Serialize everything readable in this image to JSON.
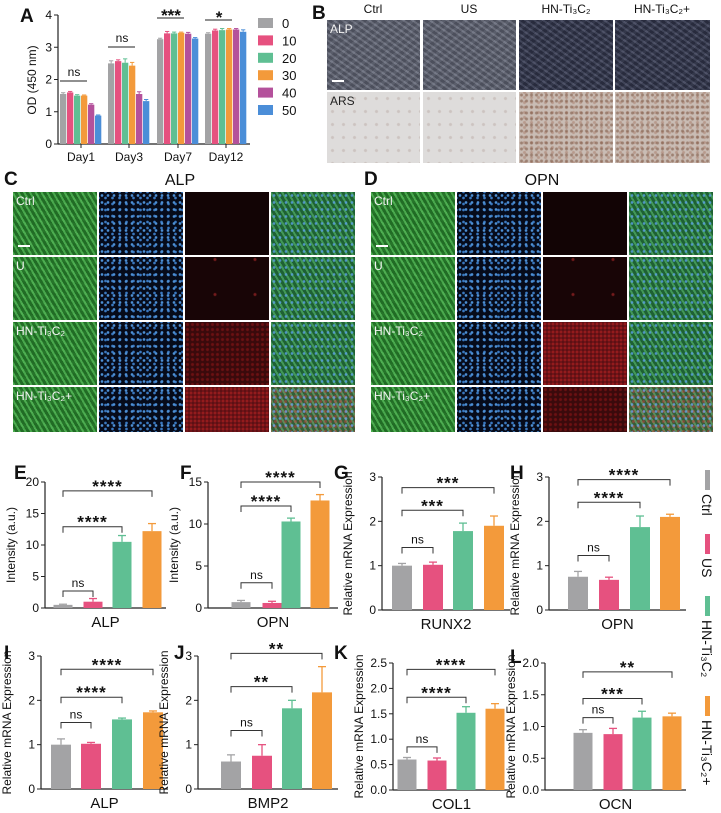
{
  "groups": [
    "Ctrl",
    "US",
    "HN-Ti₃C₂",
    "HN-Ti₃C₂+"
  ],
  "colors": {
    "ctrl": "#a3a3a5",
    "us": "#e6517f",
    "hn": "#5fbf93",
    "hn_plus": "#f39a3b",
    "a_series": [
      "#a3a3a5",
      "#e6517f",
      "#5fbf93",
      "#f39a3b",
      "#b4519b",
      "#4b8ed8"
    ]
  },
  "panel_b": {
    "label": "B",
    "columns": [
      "Ctrl",
      "US",
      "HN-Ti₃C₂",
      "HN-Ti₃C₂+"
    ],
    "rows": [
      "ALP",
      "ARS"
    ]
  },
  "panel_c": {
    "label": "C",
    "title": "ALP",
    "rows": [
      "Ctrl",
      "U",
      "HN-Ti₃C₂",
      "HN-Ti₃C₂+"
    ]
  },
  "panel_d": {
    "label": "D",
    "title": "OPN",
    "rows": [
      "Ctrl",
      "U",
      "HN-Ti₃C₂",
      "HN-Ti₃C₂+"
    ]
  },
  "legend": {
    "items": [
      "Ctrl",
      "US",
      "HN-Ti₃C₂",
      "HN-Ti₃C₂+"
    ]
  },
  "chart_data": [
    {
      "panel": "A",
      "type": "bar",
      "categories": [
        "Day1",
        "Day3",
        "Day7",
        "Day12"
      ],
      "series": [
        {
          "name": "0",
          "values": [
            1.55,
            2.5,
            3.25,
            3.42
          ],
          "errors": [
            0.04,
            0.08,
            0.03,
            0.03
          ]
        },
        {
          "name": "10",
          "values": [
            1.6,
            2.57,
            3.43,
            3.52
          ],
          "errors": [
            0.03,
            0.04,
            0.06,
            0.04
          ]
        },
        {
          "name": "20",
          "values": [
            1.5,
            2.52,
            3.43,
            3.53
          ],
          "errors": [
            0.03,
            0.12,
            0.04,
            0.05
          ]
        },
        {
          "name": "30",
          "values": [
            1.5,
            2.43,
            3.45,
            3.55
          ],
          "errors": [
            0.02,
            0.1,
            0.02,
            0.03
          ]
        },
        {
          "name": "40",
          "values": [
            1.22,
            1.55,
            3.42,
            3.55
          ],
          "errors": [
            0.03,
            0.07,
            0.04,
            0.03
          ]
        },
        {
          "name": "50",
          "values": [
            0.88,
            1.33,
            3.27,
            3.48
          ],
          "errors": [
            0.02,
            0.05,
            0.03,
            0.06
          ]
        }
      ],
      "significance": [
        "ns",
        "ns",
        "***",
        "*"
      ],
      "ylabel": "OD (450 nm)",
      "xlabel": "",
      "ylim": [
        0,
        4
      ],
      "yticks": [
        "0",
        "1",
        "2",
        "3",
        "4"
      ],
      "legend": "right"
    },
    {
      "panel": "E",
      "type": "bar",
      "categories": [
        "Ctrl",
        "US",
        "HN-Ti₃C₂",
        "HN-Ti₃C₂+"
      ],
      "values": [
        0.5,
        1.0,
        10.5,
        12.2
      ],
      "errors": [
        0.1,
        0.5,
        1.0,
        1.2
      ],
      "xlabel": "ALP",
      "ylabel": "Intensity (a.u.)",
      "ylim": [
        0,
        20
      ],
      "yticks": [
        "0",
        "5",
        "10",
        "15",
        "20"
      ],
      "comparisons": [
        "ns",
        "****",
        "****"
      ]
    },
    {
      "panel": "F",
      "type": "bar",
      "categories": [
        "Ctrl",
        "US",
        "HN-Ti₃C₂",
        "HN-Ti₃C₂+"
      ],
      "values": [
        0.7,
        0.6,
        10.3,
        12.8
      ],
      "errors": [
        0.2,
        0.2,
        0.4,
        0.7
      ],
      "xlabel": "OPN",
      "ylabel": "Intensity (a.u.)",
      "ylim": [
        0,
        15
      ],
      "yticks": [
        "0",
        "5",
        "10",
        "15"
      ],
      "comparisons": [
        "ns",
        "****",
        "****"
      ]
    },
    {
      "panel": "G",
      "type": "bar",
      "categories": [
        "Ctrl",
        "US",
        "HN-Ti₃C₂",
        "HN-Ti₃C₂+"
      ],
      "values": [
        1.0,
        1.02,
        1.78,
        1.9
      ],
      "errors": [
        0.05,
        0.06,
        0.18,
        0.22
      ],
      "xlabel": "RUNX2",
      "ylabel": "Relative mRNA Expression",
      "ylim": [
        0,
        3
      ],
      "yticks": [
        "0",
        "1",
        "2",
        "3"
      ],
      "comparisons": [
        "ns",
        "***",
        "***"
      ]
    },
    {
      "panel": "H",
      "type": "bar",
      "categories": [
        "Ctrl",
        "US",
        "HN-Ti₃C₂",
        "HN-Ti₃C₂+"
      ],
      "values": [
        0.75,
        0.68,
        1.87,
        2.1
      ],
      "errors": [
        0.12,
        0.06,
        0.25,
        0.06
      ],
      "xlabel": "OPN",
      "ylabel": "Relative mRNA Expression",
      "ylim": [
        0,
        3
      ],
      "yticks": [
        "0",
        "1",
        "2",
        "3"
      ],
      "comparisons": [
        "ns",
        "****",
        "****"
      ]
    },
    {
      "panel": "I",
      "type": "bar",
      "categories": [
        "Ctrl",
        "US",
        "HN-Ti₃C₂",
        "HN-Ti₃C₂+"
      ],
      "values": [
        1.0,
        1.02,
        1.57,
        1.73
      ],
      "errors": [
        0.13,
        0.03,
        0.03,
        0.03
      ],
      "xlabel": "ALP",
      "ylabel": "Relative mRNA Expression",
      "ylim": [
        0,
        3
      ],
      "yticks": [
        "0",
        "1",
        "2",
        "3"
      ],
      "comparisons": [
        "ns",
        "****",
        "****"
      ]
    },
    {
      "panel": "J",
      "type": "bar",
      "categories": [
        "Ctrl",
        "US",
        "HN-Ti₃C₂",
        "HN-Ti₃C₂+"
      ],
      "values": [
        0.62,
        0.75,
        1.82,
        2.18
      ],
      "errors": [
        0.15,
        0.25,
        0.18,
        0.58
      ],
      "xlabel": "BMP2",
      "ylabel": "Relative mRNA Expression",
      "ylim": [
        0,
        3
      ],
      "yticks": [
        "0",
        "1",
        "2",
        "3"
      ],
      "comparisons": [
        "ns",
        "**",
        "**"
      ]
    },
    {
      "panel": "K",
      "type": "bar",
      "categories": [
        "Ctrl",
        "US",
        "HN-Ti₃C₂",
        "HN-Ti₃C₂+"
      ],
      "values": [
        0.6,
        0.58,
        1.52,
        1.6
      ],
      "errors": [
        0.04,
        0.05,
        0.12,
        0.1
      ],
      "xlabel": "COL1",
      "ylabel": "Relative mRNA Expression",
      "ylim": [
        0,
        2.5
      ],
      "yticks": [
        "0.0",
        "0.5",
        "1.0",
        "1.5",
        "2.0",
        "2.5"
      ],
      "comparisons": [
        "ns",
        "****",
        "****"
      ]
    },
    {
      "panel": "L",
      "type": "bar",
      "categories": [
        "Ctrl",
        "US",
        "HN-Ti₃C₂",
        "HN-Ti₃C₂+"
      ],
      "values": [
        0.9,
        0.88,
        1.14,
        1.16
      ],
      "errors": [
        0.05,
        0.09,
        0.1,
        0.05
      ],
      "xlabel": "OCN",
      "ylabel": "Relative mRNA Expression",
      "ylim": [
        0,
        2.0
      ],
      "yticks": [
        "0.0",
        "0.5",
        "1.0",
        "1.5",
        "2.0"
      ],
      "comparisons": [
        "ns",
        "***",
        "**"
      ]
    }
  ]
}
